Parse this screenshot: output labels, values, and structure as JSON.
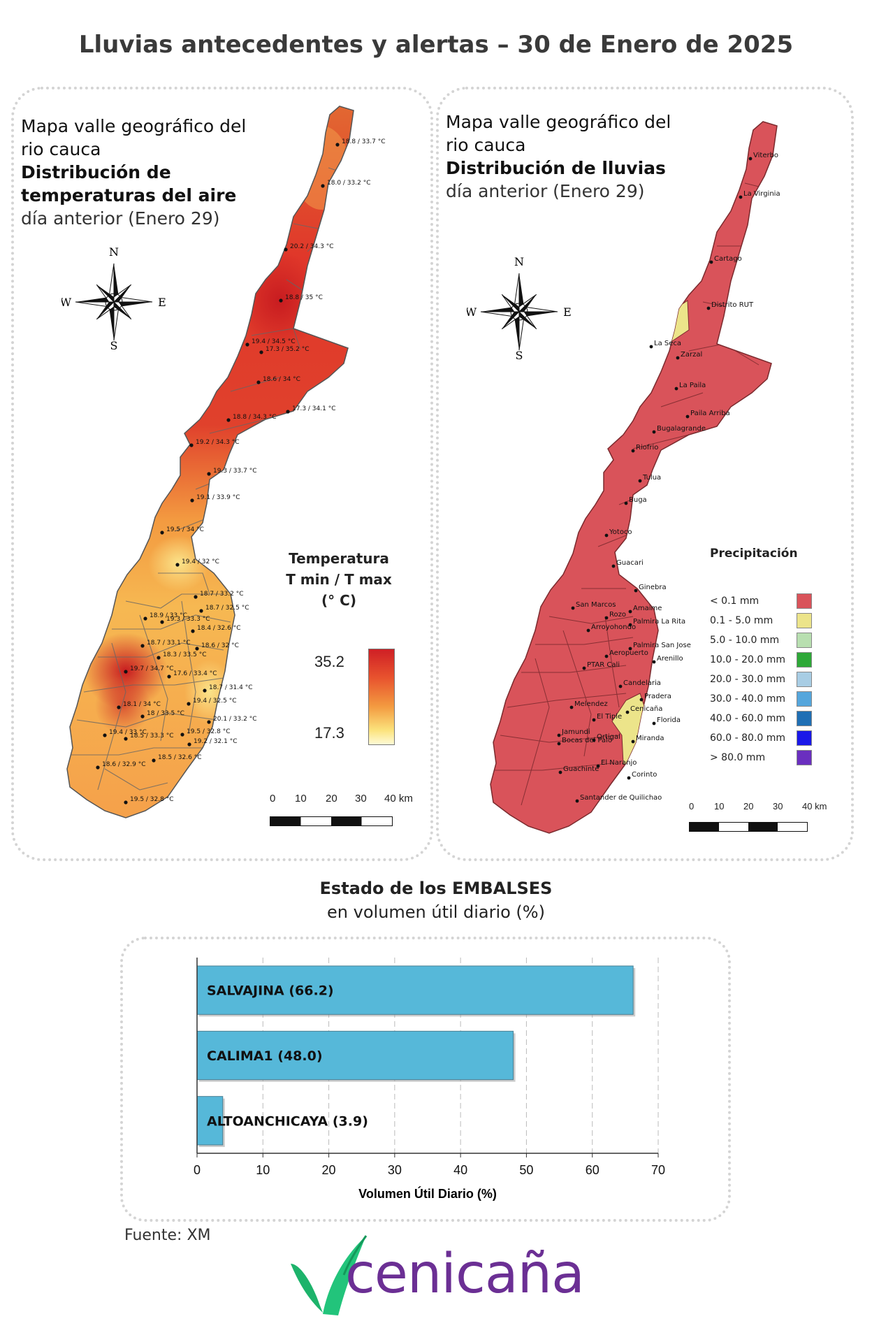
{
  "page_title": "Lluvias antecedentes y alertas – 30 de Enero de 2025",
  "temp_panel": {
    "title_line1": "Mapa valle geográfico del",
    "title_line2": "rio cauca",
    "title_line3": "Distribución de",
    "title_line4": "temperaturas del aire",
    "title_line5": "día anterior (Enero 29)",
    "compass": {
      "n": "N",
      "s": "S",
      "e": "E",
      "w": "W"
    },
    "legend_title_1": "Temperatura",
    "legend_title_2": "T min / T max",
    "legend_title_3": "(° C)",
    "legend_max": "35.2",
    "legend_min": "17.3",
    "scale_labels": [
      "0",
      "10",
      "20",
      "30",
      "40 km"
    ],
    "stations": [
      "18.8 / 33.7 °C",
      "18.0 / 33.2 °C",
      "20.2 / 34.3 °C",
      "18.8 / 35 °C",
      "19.4 / 34.5 °C",
      "17.3 / 35.2 °C",
      "18.6 / 34 °C",
      "17.3 / 34.1 °C",
      "18.8 / 34.3 °C",
      "19.2 / 34.3 °C",
      "19.3 / 33.7 °C",
      "19.1 / 33.9 °C",
      "19.5 / 34 °C",
      "19.4 / 32 °C",
      "18.7 / 33.2 °C",
      "18.7 / 32.5 °C",
      "18.9 / 33 °C",
      "19.3 / 33.3 °C",
      "18.4 / 32.6 °C",
      "18.7 / 33.1 °C",
      "18.6 / 32 °C",
      "19.7 / 34.7 °C",
      "18.3 / 33.5 °C",
      "17.6 / 33.4 °C",
      "18.7 / 31.4 °C",
      "18.1 / 34 °C",
      "19.4 / 32.5 °C",
      "18 / 33.5 °C",
      "20.1 / 33.2 °C",
      "19.4 / 33 °C",
      "19.5 / 32.8 °C",
      "18.5 / 33.3 °C",
      "19.2 / 32.1 °C",
      "18.5 / 32.6 °C",
      "18.6 / 32.9 °C",
      "19.5 / 32.8 °C"
    ]
  },
  "rain_panel": {
    "title_line1": "Mapa valle geográfico del",
    "title_line2": "rio cauca",
    "title_line3": "Distribución de lluvias",
    "title_line4": "día anterior (Enero 29)",
    "compass": {
      "n": "N",
      "s": "S",
      "e": "E",
      "w": "W"
    },
    "legend_title": "Precipitación",
    "legend_items": [
      {
        "label": "< 0.1 mm",
        "color": "#d9535a"
      },
      {
        "label": "0.1 - 5.0 mm",
        "color": "#ece48a"
      },
      {
        "label": "5.0 - 10.0 mm",
        "color": "#b8dfb0"
      },
      {
        "label": "10.0 - 20.0 mm",
        "color": "#2ea838"
      },
      {
        "label": "20.0 - 30.0 mm",
        "color": "#a8cde4"
      },
      {
        "label": "30.0 - 40.0 mm",
        "color": "#55a6dc"
      },
      {
        "label": "40.0 - 60.0 mm",
        "color": "#1f6fb4"
      },
      {
        "label": "60.0 - 80.0 mm",
        "color": "#1a18e8"
      },
      {
        "label": "> 80.0 mm",
        "color": "#6a2fbf"
      }
    ],
    "scale_labels": [
      "0",
      "10",
      "20",
      "30",
      "40 km"
    ],
    "cities": [
      "Viterbo",
      "La Virginia",
      "Cartago",
      "Distrito RUT",
      "La Seca",
      "Zarzal",
      "La Paila",
      "Paila Arriba",
      "Bugalagrande",
      "Riofrio",
      "Tulua",
      "Buga",
      "Yotoco",
      "Guacari",
      "Ginebra",
      "San Marcos",
      "Amaime",
      "Rozo",
      "Palmira La Rita",
      "Arroyohondo",
      "Palmira San Jose",
      "Aeropuerto",
      "Arenillo",
      "PTAR Cali",
      "Candelaria",
      "Pradera",
      "Melendez",
      "Cenicaña",
      "El Tiple",
      "Florida",
      "Jamundi",
      "Bocas del Palo",
      "Ortigal",
      "Miranda",
      "El Naranjo",
      "Guachinte",
      "Corinto",
      "Santander de Quilichao"
    ]
  },
  "reservoirs": {
    "title_bold": "Estado de los EMBALSES",
    "subtitle": "en volumen útil diario (%)",
    "xlabel": "Volumen Útil Diario (%)",
    "source": "Fuente: XM",
    "logo_text": "cenicaña"
  },
  "chart_data": {
    "type": "bar",
    "orientation": "horizontal",
    "categories": [
      "SALVAJINA (66.2)",
      "CALIMA1 (48.0)",
      "ALTOANCHICAYA (3.9)"
    ],
    "values": [
      66.2,
      48.0,
      3.9
    ],
    "xlabel": "Volumen Útil Diario (%)",
    "xlim": [
      0,
      70
    ],
    "xticks": [
      0,
      10,
      20,
      30,
      40,
      50,
      60,
      70
    ],
    "grid": true,
    "bar_color": "#56b8d9"
  },
  "colors": {
    "brand_green": "#1db36b",
    "brand_purple": "#6b2f94",
    "rain_dry": "#d9535a",
    "rain_low": "#ece48a"
  }
}
